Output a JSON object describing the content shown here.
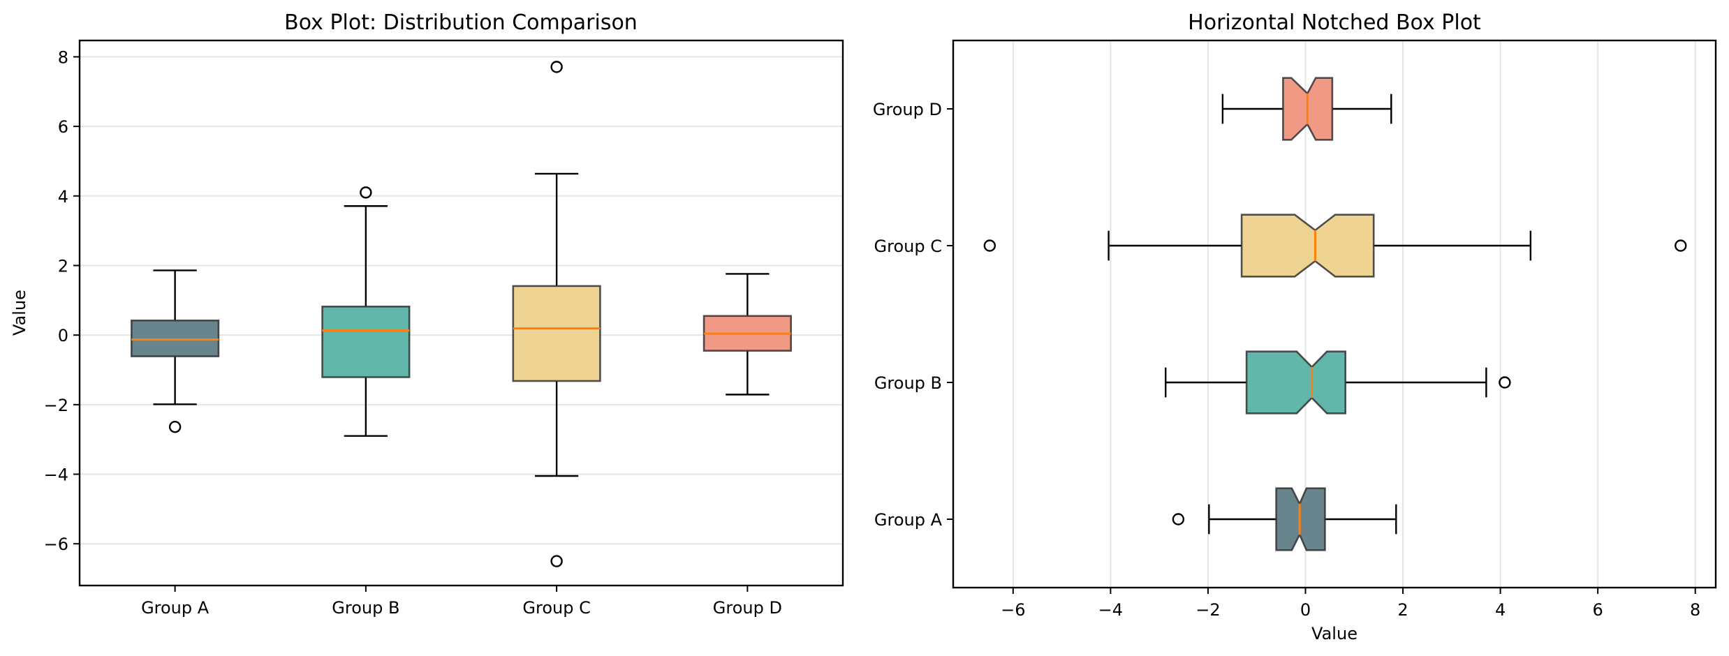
{
  "chart_data": [
    {
      "type": "box",
      "orientation": "vertical",
      "notched": false,
      "title": "Box Plot: Distribution Comparison",
      "xlabel": "",
      "ylabel": "Value",
      "ylim": [
        -7.2,
        8.47
      ],
      "yticks": [
        -6,
        -4,
        -2,
        0,
        2,
        4,
        6,
        8
      ],
      "ytick_labels": [
        "−6",
        "−4",
        "−2",
        "0",
        "2",
        "4",
        "6",
        "8"
      ],
      "grid": "y",
      "categories": [
        "Group A",
        "Group B",
        "Group C",
        "Group D"
      ],
      "series": [
        {
          "name": "Group A",
          "color": "#607d87",
          "whisker_low": -1.99,
          "q1": -0.61,
          "median": -0.13,
          "q3": 0.42,
          "whisker_high": 1.86,
          "outliers": [
            -2.64
          ]
        },
        {
          "name": "Group B",
          "color": "#5ab3a7",
          "whisker_low": -2.9,
          "q1": -1.21,
          "median": 0.13,
          "q3": 0.82,
          "whisker_high": 3.71,
          "outliers": [
            4.1
          ]
        },
        {
          "name": "Group C",
          "color": "#eed18c",
          "whisker_low": -4.05,
          "q1": -1.32,
          "median": 0.19,
          "q3": 1.41,
          "whisker_high": 4.64,
          "outliers": [
            7.71,
            -6.5
          ]
        },
        {
          "name": "Group D",
          "color": "#ef9580",
          "whisker_low": -1.71,
          "q1": -0.45,
          "median": 0.04,
          "q3": 0.55,
          "whisker_high": 1.76,
          "outliers": []
        }
      ]
    },
    {
      "type": "box",
      "orientation": "horizontal",
      "notched": true,
      "title": "Horizontal Notched Box Plot",
      "xlabel": "Value",
      "ylabel": "",
      "xlim": [
        -7.23,
        8.42
      ],
      "xticks": [
        -6,
        -4,
        -2,
        0,
        2,
        4,
        6,
        8
      ],
      "xtick_labels": [
        "−6",
        "−4",
        "−2",
        "0",
        "2",
        "4",
        "6",
        "8"
      ],
      "grid": "x",
      "categories": [
        "Group A",
        "Group B",
        "Group C",
        "Group D"
      ],
      "series": [
        {
          "name": "Group A",
          "color": "#607d87",
          "whisker_low": -1.98,
          "q1": -0.6,
          "notch_low": -0.28,
          "median": -0.12,
          "notch_high": 0.02,
          "q3": 0.4,
          "whisker_high": 1.86,
          "outliers": [
            -2.61
          ]
        },
        {
          "name": "Group B",
          "color": "#5ab3a7",
          "whisker_low": -2.87,
          "q1": -1.21,
          "notch_low": -0.18,
          "median": 0.13,
          "notch_high": 0.44,
          "q3": 0.82,
          "whisker_high": 3.71,
          "outliers": [
            4.09
          ]
        },
        {
          "name": "Group C",
          "color": "#eed18c",
          "whisker_low": -4.04,
          "q1": -1.31,
          "notch_low": -0.22,
          "median": 0.2,
          "notch_high": 0.61,
          "q3": 1.4,
          "whisker_high": 4.62,
          "outliers": [
            -6.48,
            7.7
          ]
        },
        {
          "name": "Group D",
          "color": "#ef9580",
          "whisker_low": -1.7,
          "q1": -0.46,
          "notch_low": -0.29,
          "median": 0.04,
          "notch_high": 0.21,
          "q3": 0.55,
          "whisker_high": 1.76,
          "outliers": []
        }
      ]
    }
  ],
  "colors": {
    "median": "#ff7f0e",
    "grid": "#e5e5e5",
    "box_edge": "#333333"
  }
}
